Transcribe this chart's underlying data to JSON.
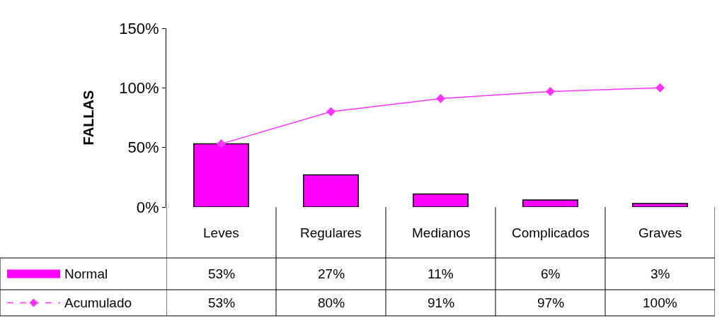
{
  "chart_data": {
    "type": "bar",
    "ylabel": "FALLAS",
    "categories": [
      "Leves",
      "Regulares",
      "Medianos",
      "Complicados",
      "Graves"
    ],
    "series": [
      {
        "name": "Normal",
        "color": "#ff00ff",
        "values": [
          53,
          27,
          11,
          6,
          3
        ],
        "value_labels": [
          "53%",
          "27%",
          "11%",
          "6%",
          "3%"
        ]
      },
      {
        "name": "Acumulado",
        "type": "line",
        "color": "#ff33ff",
        "values": [
          53,
          80,
          91,
          97,
          100
        ],
        "value_labels": [
          "53%",
          "80%",
          "91%",
          "97%",
          "100%"
        ]
      }
    ],
    "marker": "diamond",
    "legend": "bottom left",
    "ylim": [
      0,
      150
    ],
    "yticks": [
      {
        "value": 0,
        "label": "0%"
      },
      {
        "value": 50,
        "label": "50%"
      },
      {
        "value": 100,
        "label": "100%"
      },
      {
        "value": 150,
        "label": "150%"
      }
    ]
  }
}
